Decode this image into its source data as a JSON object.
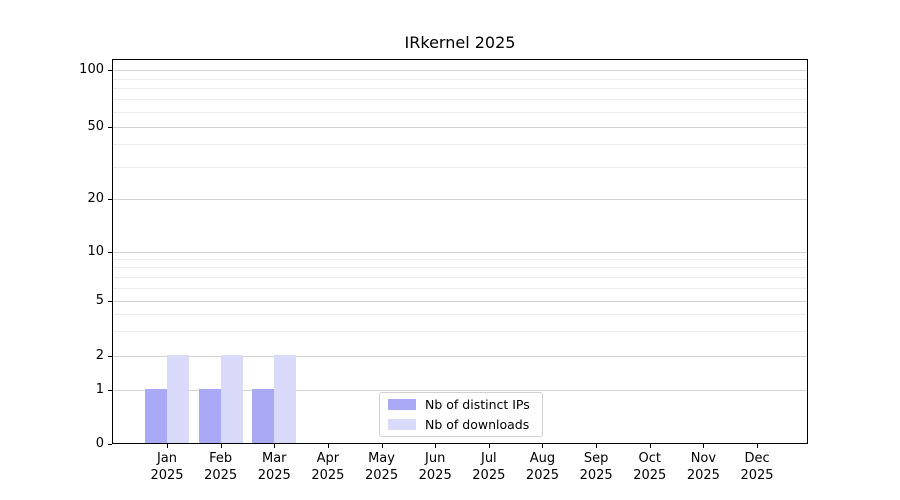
{
  "title": "IRkernel 2025",
  "chart_data": {
    "type": "bar",
    "title": "IRkernel 2025",
    "x_tick_months": [
      "Jan",
      "Feb",
      "Mar",
      "Apr",
      "May",
      "Jun",
      "Jul",
      "Aug",
      "Sep",
      "Oct",
      "Nov",
      "Dec"
    ],
    "x_tick_year": "2025",
    "categories": [
      "Jan 2025",
      "Feb 2025",
      "Mar 2025",
      "Apr 2025",
      "May 2025",
      "Jun 2025",
      "Jul 2025",
      "Aug 2025",
      "Sep 2025",
      "Oct 2025",
      "Nov 2025",
      "Dec 2025"
    ],
    "series": [
      {
        "name": "Nb of distinct IPs",
        "color": "#a9a9f5",
        "values": [
          1,
          1,
          1,
          0,
          0,
          0,
          0,
          0,
          0,
          0,
          0,
          0
        ]
      },
      {
        "name": "Nb of downloads",
        "color": "#d9d9f9",
        "values": [
          2,
          2,
          2,
          0,
          0,
          0,
          0,
          0,
          0,
          0,
          0,
          0
        ]
      }
    ],
    "y_ticks": [
      0,
      1,
      2,
      5,
      10,
      20,
      50,
      100
    ],
    "y_scale": "log-like (0 at baseline)",
    "ylim": [
      0,
      100
    ],
    "grid": true,
    "legend_position": "lower center"
  },
  "legend": {
    "items": [
      {
        "label": "Nb of distinct IPs",
        "color": "#a9a9f5"
      },
      {
        "label": "Nb of downloads",
        "color": "#d9d9f9"
      }
    ]
  },
  "colors": {
    "bar_distinct_ips": "#a9a9f5",
    "bar_downloads": "#d9d9f9",
    "grid_major": "#d4d4d4",
    "grid_minor": "#ededed",
    "spine": "#000000",
    "background": "#ffffff"
  }
}
